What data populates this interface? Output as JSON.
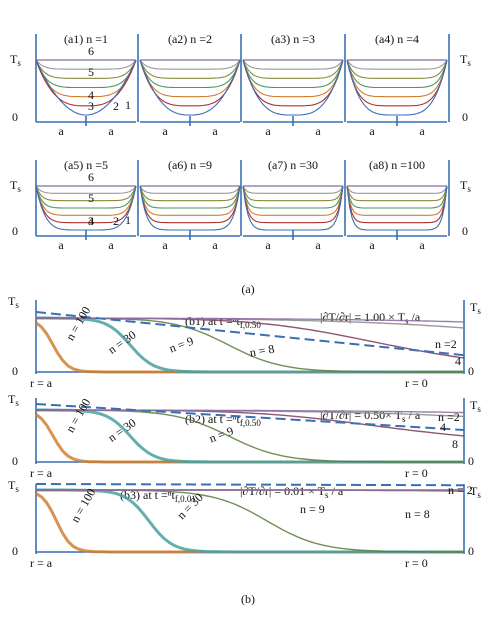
{
  "part_a": {
    "caption": "(a)",
    "y_label": "T",
    "y_label_sub": "s",
    "zero": "0",
    "x_label": "a",
    "panels": [
      {
        "title": "(a1) n =1"
      },
      {
        "title": "(a2) n =2"
      },
      {
        "title": "(a3) n =3"
      },
      {
        "title": "(a4) n =4"
      },
      {
        "title": "(a5) n =5"
      },
      {
        "title": "(a6) n =9"
      },
      {
        "title": "(a7) n =30"
      },
      {
        "title": "(a8) n =100"
      }
    ],
    "curve_labels": [
      "6",
      "5",
      "4",
      "3",
      "2",
      "1"
    ]
  },
  "part_b": {
    "caption": "(b)",
    "y_label": "T",
    "y_label_sub": "s",
    "zero": "0",
    "left_label": "r = a",
    "right_label": "r = 0",
    "panels": [
      {
        "title": "(b1) at t =ⁿt",
        "subscript": "f,0.50",
        "gradient": "|∂T/∂r| = 1.00 × T",
        "gradient_sub": "s",
        "gradient_end": " /a",
        "curve_labels": [
          "n = 100",
          "n = 30",
          "n = 9",
          "n = 8",
          "n =2",
          "4"
        ]
      },
      {
        "title": "(b2) at t =ⁿt",
        "subscript": "f,0.50",
        "gradient": "|∂T/∂r| = 0.50× T",
        "gradient_sub": "s",
        "gradient_end": " / a",
        "curve_labels": [
          "n = 100",
          "n = 30",
          "n = 9",
          "n =2",
          "4",
          "8"
        ]
      },
      {
        "title": "(b3) at t =ⁿt",
        "subscript": "f,0.01",
        "gradient": "|∂T/∂r| = 0.01 × T",
        "gradient_sub": "s",
        "gradient_end": " / a",
        "curve_labels": [
          "n = 100",
          "n = 30",
          "n = 9",
          "n = 8",
          "n = 2"
        ]
      }
    ]
  }
}
